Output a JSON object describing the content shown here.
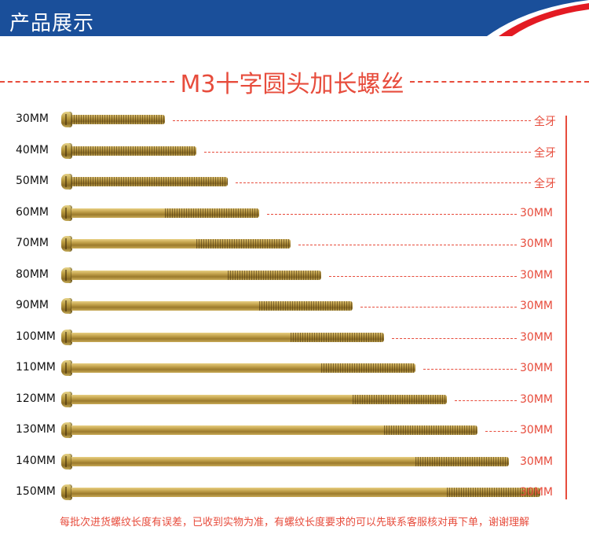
{
  "header": {
    "title": "产品展示",
    "bg_color": "#1a4f9a",
    "accent_color": "#e31b23"
  },
  "product_title": "M3十字圆头加长螺丝",
  "accent_red": "#e74c3c",
  "screws": [
    {
      "size": "30MM",
      "thread": "全牙",
      "length_mm": 30,
      "thread_fraction": 1.0
    },
    {
      "size": "40MM",
      "thread": "全牙",
      "length_mm": 40,
      "thread_fraction": 1.0
    },
    {
      "size": "50MM",
      "thread": "全牙",
      "length_mm": 50,
      "thread_fraction": 1.0
    },
    {
      "size": "60MM",
      "thread": "30MM",
      "length_mm": 60,
      "thread_mm": 30
    },
    {
      "size": "70MM",
      "thread": "30MM",
      "length_mm": 70,
      "thread_mm": 30
    },
    {
      "size": "80MM",
      "thread": "30MM",
      "length_mm": 80,
      "thread_mm": 30
    },
    {
      "size": "90MM",
      "thread": "30MM",
      "length_mm": 90,
      "thread_mm": 30
    },
    {
      "size": "100MM",
      "thread": "30MM",
      "length_mm": 100,
      "thread_mm": 30
    },
    {
      "size": "110MM",
      "thread": "30MM",
      "length_mm": 110,
      "thread_mm": 30
    },
    {
      "size": "120MM",
      "thread": "30MM",
      "length_mm": 120,
      "thread_mm": 30
    },
    {
      "size": "130MM",
      "thread": "30MM",
      "length_mm": 130,
      "thread_mm": 30
    },
    {
      "size": "140MM",
      "thread": "30MM",
      "length_mm": 140,
      "thread_mm": 30
    },
    {
      "size": "150MM",
      "thread": "30MM",
      "length_mm": 150,
      "thread_mm": 30
    }
  ],
  "footer_note": "每批次进货螺纹长度有误差，已收到实物为准，有螺纹长度要求的可以先联系客服核对再下单，谢谢理解"
}
